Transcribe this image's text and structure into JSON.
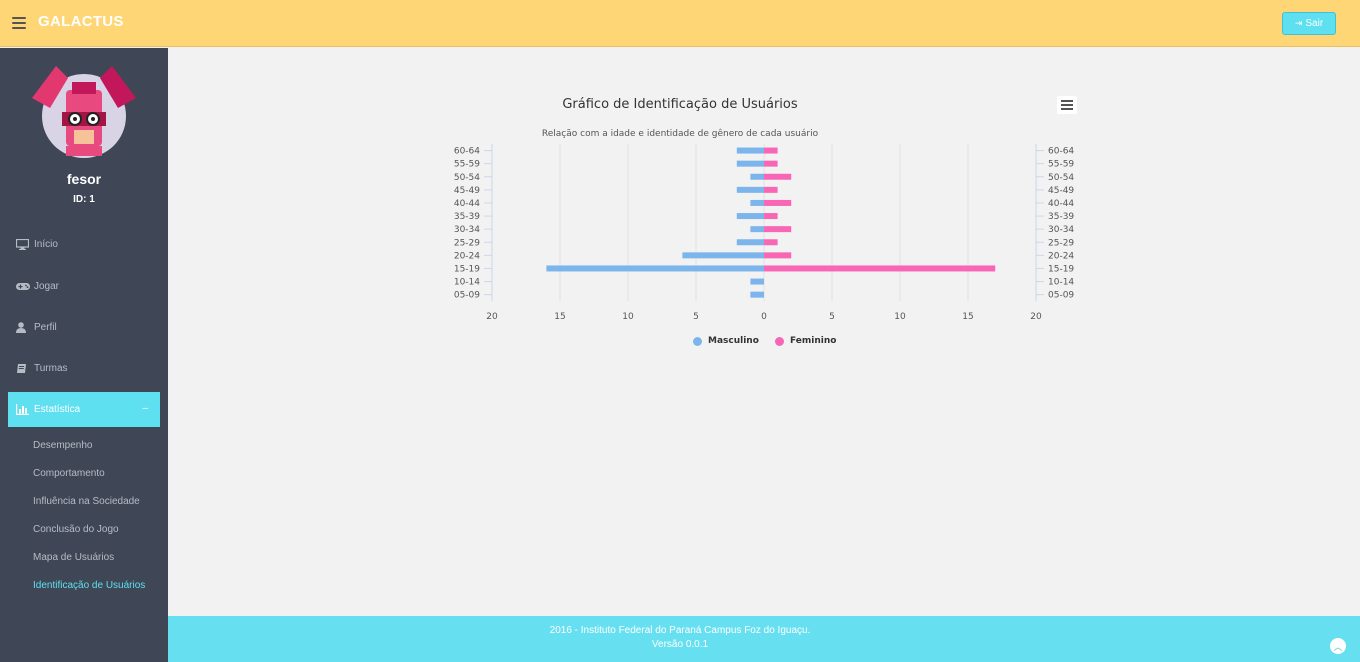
{
  "header": {
    "brand": "GALACTUS",
    "logout_label": "Sair"
  },
  "sidebar": {
    "username": "fesor",
    "user_id": "ID: 1",
    "nav": [
      {
        "label": "Início",
        "icon": "monitor-icon"
      },
      {
        "label": "Jogar",
        "icon": "gamepad-icon"
      },
      {
        "label": "Perfil",
        "icon": "user-icon"
      },
      {
        "label": "Turmas",
        "icon": "book-icon"
      },
      {
        "label": "Estatística",
        "icon": "bar-chart-icon",
        "active": true,
        "caret": "–"
      }
    ],
    "subnav": [
      {
        "label": "Desempenho"
      },
      {
        "label": "Comportamento"
      },
      {
        "label": "Influência na Sociedade"
      },
      {
        "label": "Conclusão do Jogo"
      },
      {
        "label": "Mapa de Usuários"
      },
      {
        "label": "Identificação de Usuários",
        "active": true
      }
    ]
  },
  "chart_data": {
    "type": "bar",
    "orientation": "horizontal-population-pyramid",
    "title": "Gráfico de Identificação de Usuários",
    "subtitle": "Relação com a idade e identidade de gênero de cada usuário",
    "categories": [
      "60-64",
      "55-59",
      "50-54",
      "45-49",
      "40-44",
      "35-39",
      "30-34",
      "25-29",
      "20-24",
      "15-19",
      "10-14",
      "05-09"
    ],
    "series": [
      {
        "name": "Masculino",
        "color": "#7cb5ec",
        "values": [
          2,
          2,
          1,
          2,
          1,
          2,
          1,
          2,
          6,
          16,
          1,
          1
        ]
      },
      {
        "name": "Feminino",
        "color": "#f767b5",
        "values": [
          1,
          1,
          2,
          1,
          2,
          1,
          2,
          1,
          2,
          17,
          0,
          0
        ]
      }
    ],
    "xlim": [
      -20,
      20
    ],
    "xticks": [
      "20",
      "15",
      "10",
      "5",
      "0",
      "5",
      "10",
      "15",
      "20"
    ],
    "grid": true,
    "legend": "bottom-center"
  },
  "footer": {
    "line1": "2016 - Instituto Federal do Paraná Campus Foz do Iguaçu.",
    "line2": "Versão 0.0.1"
  }
}
